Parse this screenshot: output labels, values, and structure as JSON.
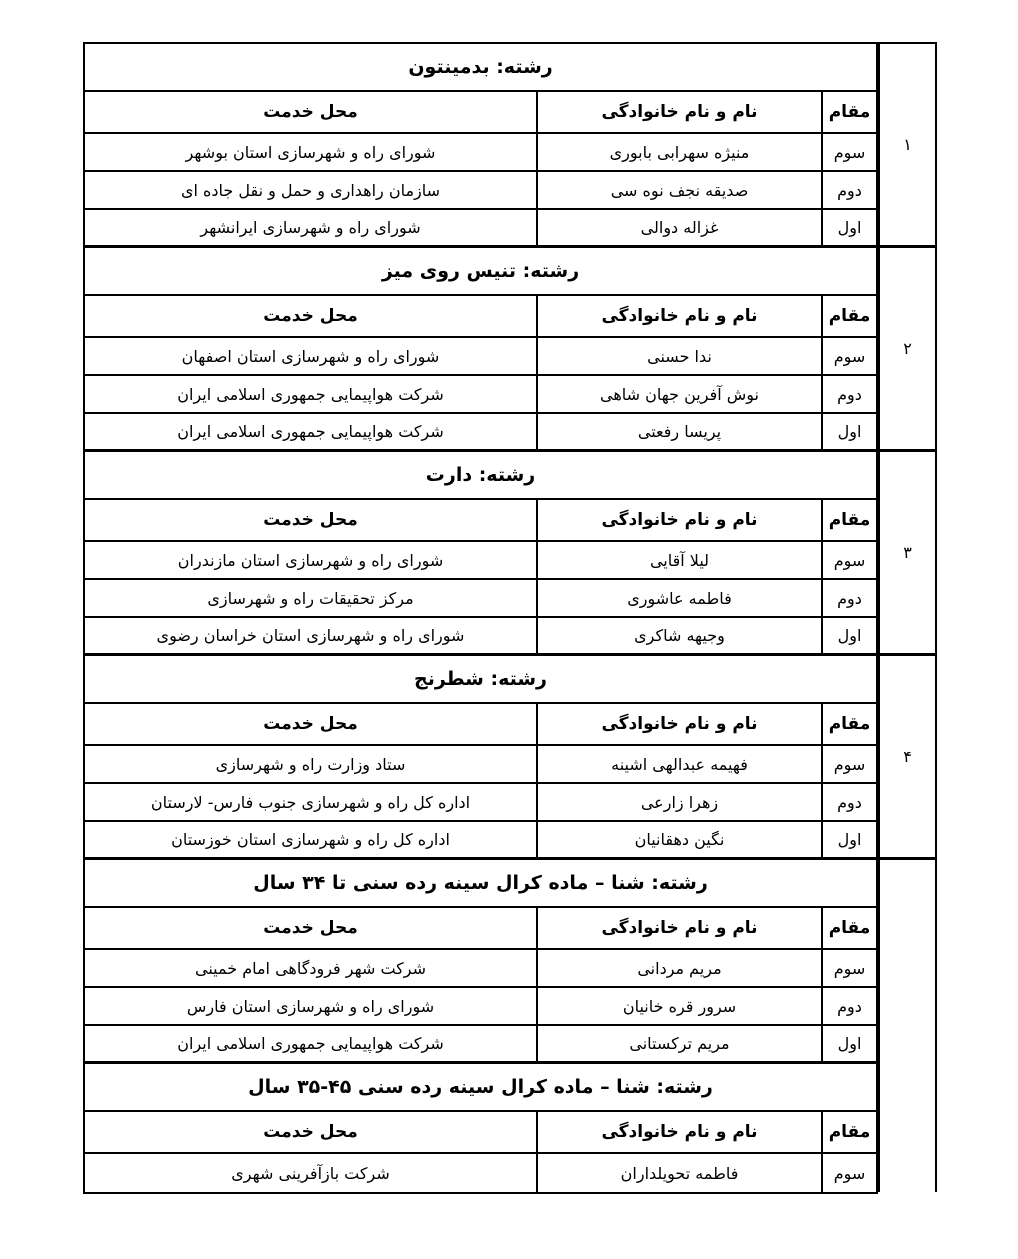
{
  "doc": {
    "columns": {
      "service": "محل خدمت",
      "name": "نام و نام خانوادگی",
      "rank": "مقام"
    },
    "section_numbers": [
      "۱",
      "۲",
      "۳",
      "۴",
      ""
    ],
    "sections": [
      {
        "title": "رشته: بدمینتون",
        "rows": [
          {
            "rank": "سوم",
            "name": "منیژه سهرابی بابوری",
            "service": "شورای راه و شهرسازی استان بوشهر"
          },
          {
            "rank": "دوم",
            "name": "صدیقه نجف نوه سی",
            "service": "سازمان راهداری و حمل و نقل جاده ای"
          },
          {
            "rank": "اول",
            "name": "غزاله دوالی",
            "service": "شورای راه و شهرسازی ایرانشهر"
          }
        ]
      },
      {
        "title": "رشته: تنیس روی میز",
        "rows": [
          {
            "rank": "سوم",
            "name": "ندا حسنی",
            "service": "شورای راه و شهرسازی استان اصفهان"
          },
          {
            "rank": "دوم",
            "name": "نوش آفرین جهان شاهی",
            "service": "شرکت هواپیمایی جمهوری اسلامی ایران"
          },
          {
            "rank": "اول",
            "name": "پریسا رفعتی",
            "service": "شرکت هواپیمایی جمهوری اسلامی ایران"
          }
        ]
      },
      {
        "title": "رشته: دارت",
        "rows": [
          {
            "rank": "سوم",
            "name": "لیلا آقایی",
            "service": "شورای راه و شهرسازی استان مازندران"
          },
          {
            "rank": "دوم",
            "name": "فاطمه عاشوری",
            "service": "مرکز تحقیقات راه و شهرسازی"
          },
          {
            "rank": "اول",
            "name": "وجیهه شاکری",
            "service": "شورای راه و شهرسازی استان خراسان رضوی"
          }
        ]
      },
      {
        "title": "رشته: شطرنج",
        "rows": [
          {
            "rank": "سوم",
            "name": "فهیمه عبدالهی اشینه",
            "service": "ستاد وزارت راه و شهرسازی"
          },
          {
            "rank": "دوم",
            "name": "زهرا زارعی",
            "service": "اداره کل راه و شهرسازی جنوب فارس- لارستان"
          },
          {
            "rank": "اول",
            "name": "نگین دهقانیان",
            "service": "اداره کل راه و شهرسازی استان خوزستان"
          }
        ]
      },
      {
        "title": "رشته: شنا – ماده کرال سینه رده سنی تا ۳۴ سال",
        "rows": [
          {
            "rank": "سوم",
            "name": "مریم مردانی",
            "service": "شرکت شهر فرودگاهی امام خمینی"
          },
          {
            "rank": "دوم",
            "name": "سرور قره خانیان",
            "service": "شورای راه و شهرسازی استان فارس"
          },
          {
            "rank": "اول",
            "name": "مریم ترکستانی",
            "service": "شرکت هواپیمایی جمهوری اسلامی ایران"
          }
        ]
      },
      {
        "title": "رشته: شنا – ماده کرال سینه رده سنی ۴۵-۳۵ سال",
        "rows": [
          {
            "rank": "سوم",
            "name": "فاطمه تحویلداران",
            "service": "شرکت بازآفرینی شهری"
          }
        ]
      }
    ]
  }
}
